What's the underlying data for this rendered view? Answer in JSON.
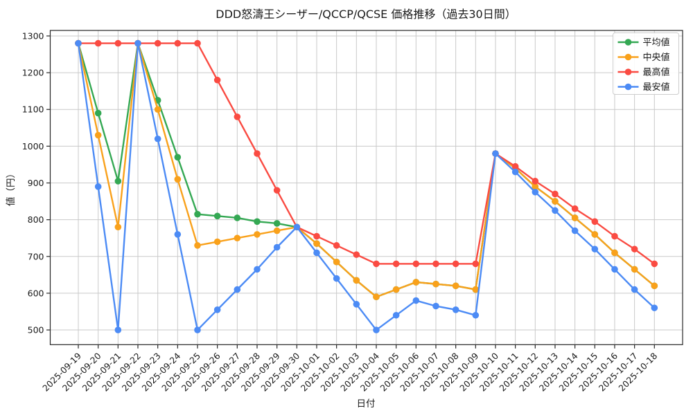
{
  "figure": {
    "background": "#ffffff",
    "grid_color": "#c9c9c9",
    "spine_color": "#262626",
    "legend": {
      "border_color": "#cccccc",
      "background": "#ffffff",
      "position": "upper right"
    }
  },
  "chart_data": {
    "type": "line",
    "title": "DDD怒濤王シーザー/QCCP/QCSE 価格推移（過去30日間）",
    "xlabel": "日付",
    "ylabel": "値（円）",
    "grid": true,
    "legend_position": "upper right",
    "ylim": [
      460,
      1315
    ],
    "yticks": [
      500,
      600,
      700,
      800,
      900,
      1000,
      1100,
      1200,
      1300
    ],
    "x": [
      "2025-09-19",
      "2025-09-20",
      "2025-09-21",
      "2025-09-22",
      "2025-09-23",
      "2025-09-24",
      "2025-09-25",
      "2025-09-26",
      "2025-09-27",
      "2025-09-28",
      "2025-09-29",
      "2025-09-30",
      "2025-10-01",
      "2025-10-02",
      "2025-10-03",
      "2025-10-04",
      "2025-10-05",
      "2025-10-06",
      "2025-10-07",
      "2025-10-08",
      "2025-10-09",
      "2025-10-10",
      "2025-10-11",
      "2025-10-12",
      "2025-10-13",
      "2025-10-14",
      "2025-10-15",
      "2025-10-16",
      "2025-10-17",
      "2025-10-18"
    ],
    "series": [
      {
        "key": "mean",
        "name": "平均値",
        "color": "#34a853",
        "values": [
          1280,
          1090,
          905,
          1280,
          1125,
          970,
          815,
          810,
          805,
          795,
          790,
          780,
          735,
          685,
          635,
          590,
          610,
          630,
          625,
          620,
          610,
          980,
          940,
          890,
          850,
          805,
          760,
          710,
          665,
          620
        ]
      },
      {
        "key": "median",
        "name": "中央値",
        "color": "#f9a11b",
        "values": [
          1280,
          1030,
          780,
          1280,
          1100,
          910,
          730,
          740,
          750,
          760,
          770,
          780,
          735,
          685,
          635,
          590,
          610,
          630,
          625,
          620,
          610,
          980,
          940,
          890,
          850,
          805,
          760,
          710,
          665,
          620
        ]
      },
      {
        "key": "max",
        "name": "最高値",
        "color": "#fa4b42",
        "values": [
          1280,
          1280,
          1280,
          1280,
          1280,
          1280,
          1280,
          1180,
          1080,
          980,
          880,
          780,
          755,
          730,
          705,
          680,
          680,
          680,
          680,
          680,
          680,
          980,
          945,
          905,
          870,
          830,
          795,
          755,
          720,
          680
        ]
      },
      {
        "key": "min",
        "name": "最安値",
        "color": "#4c8bf5",
        "values": [
          1280,
          890,
          500,
          1280,
          1020,
          760,
          500,
          555,
          610,
          665,
          725,
          780,
          710,
          640,
          570,
          500,
          540,
          580,
          565,
          555,
          540,
          980,
          930,
          875,
          825,
          770,
          720,
          665,
          610,
          560
        ]
      }
    ]
  }
}
